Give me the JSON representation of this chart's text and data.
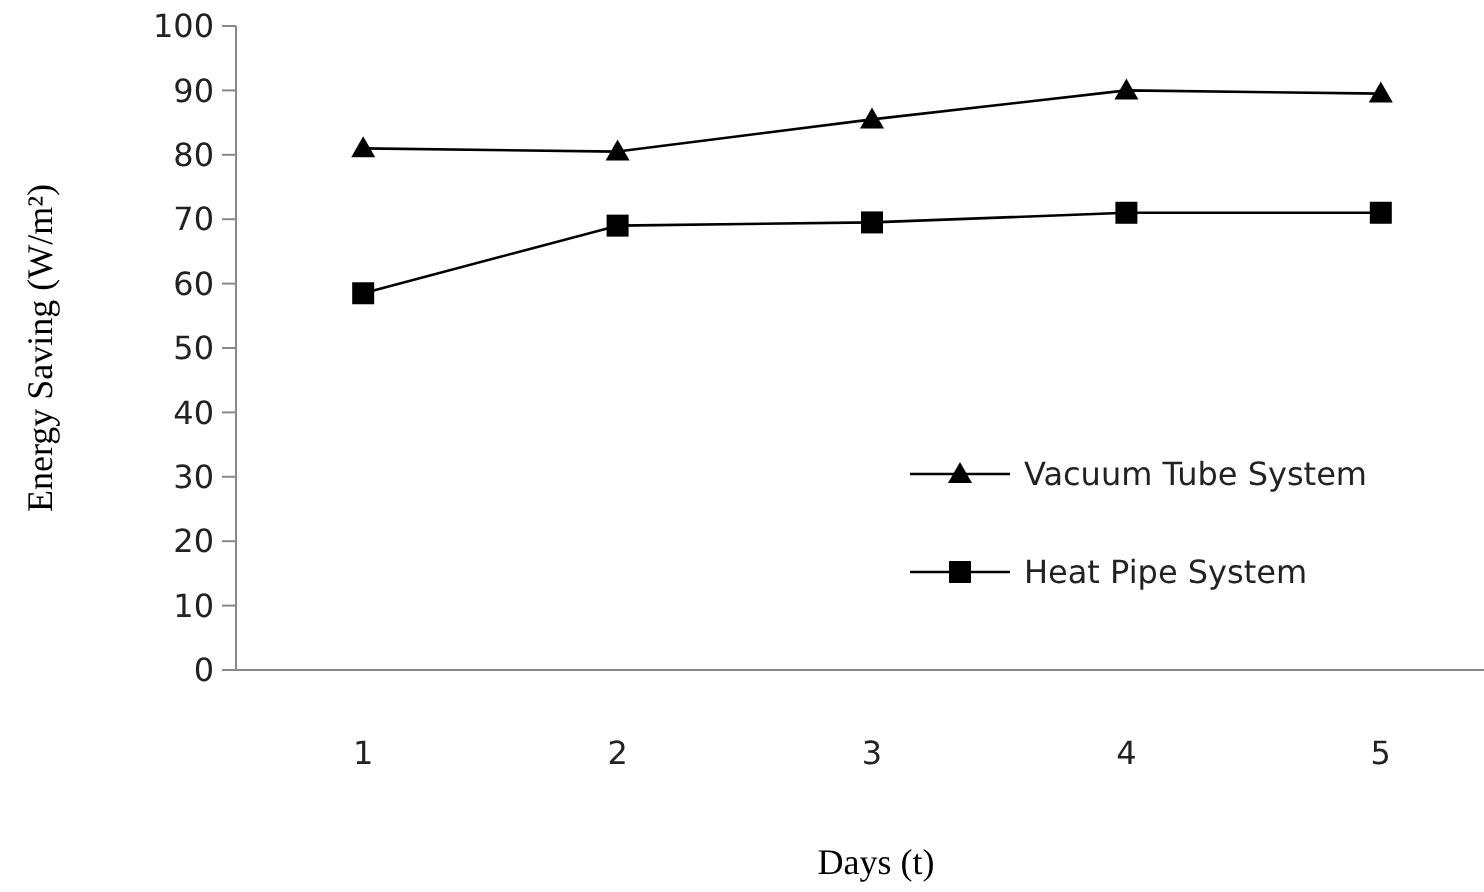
{
  "chart_data": {
    "type": "line",
    "xlabel": "Days (t)",
    "ylabel": "Energy Saving (W/m²)",
    "categories": [
      "1",
      "2",
      "3",
      "4",
      "5"
    ],
    "ylim": [
      0,
      100
    ],
    "yticks": [
      0,
      10,
      20,
      30,
      40,
      50,
      60,
      70,
      80,
      90,
      100
    ],
    "grid": false,
    "legend": "right",
    "line_style": "solid",
    "series": [
      {
        "name": "Vacuum Tube System",
        "color": "#000000",
        "marker": "triangle",
        "values": [
          81,
          80.5,
          85.5,
          90,
          89.5
        ]
      },
      {
        "name": "Heat Pipe System",
        "color": "#000000",
        "marker": "square",
        "values": [
          58.5,
          69,
          69.5,
          71,
          71
        ]
      }
    ]
  }
}
